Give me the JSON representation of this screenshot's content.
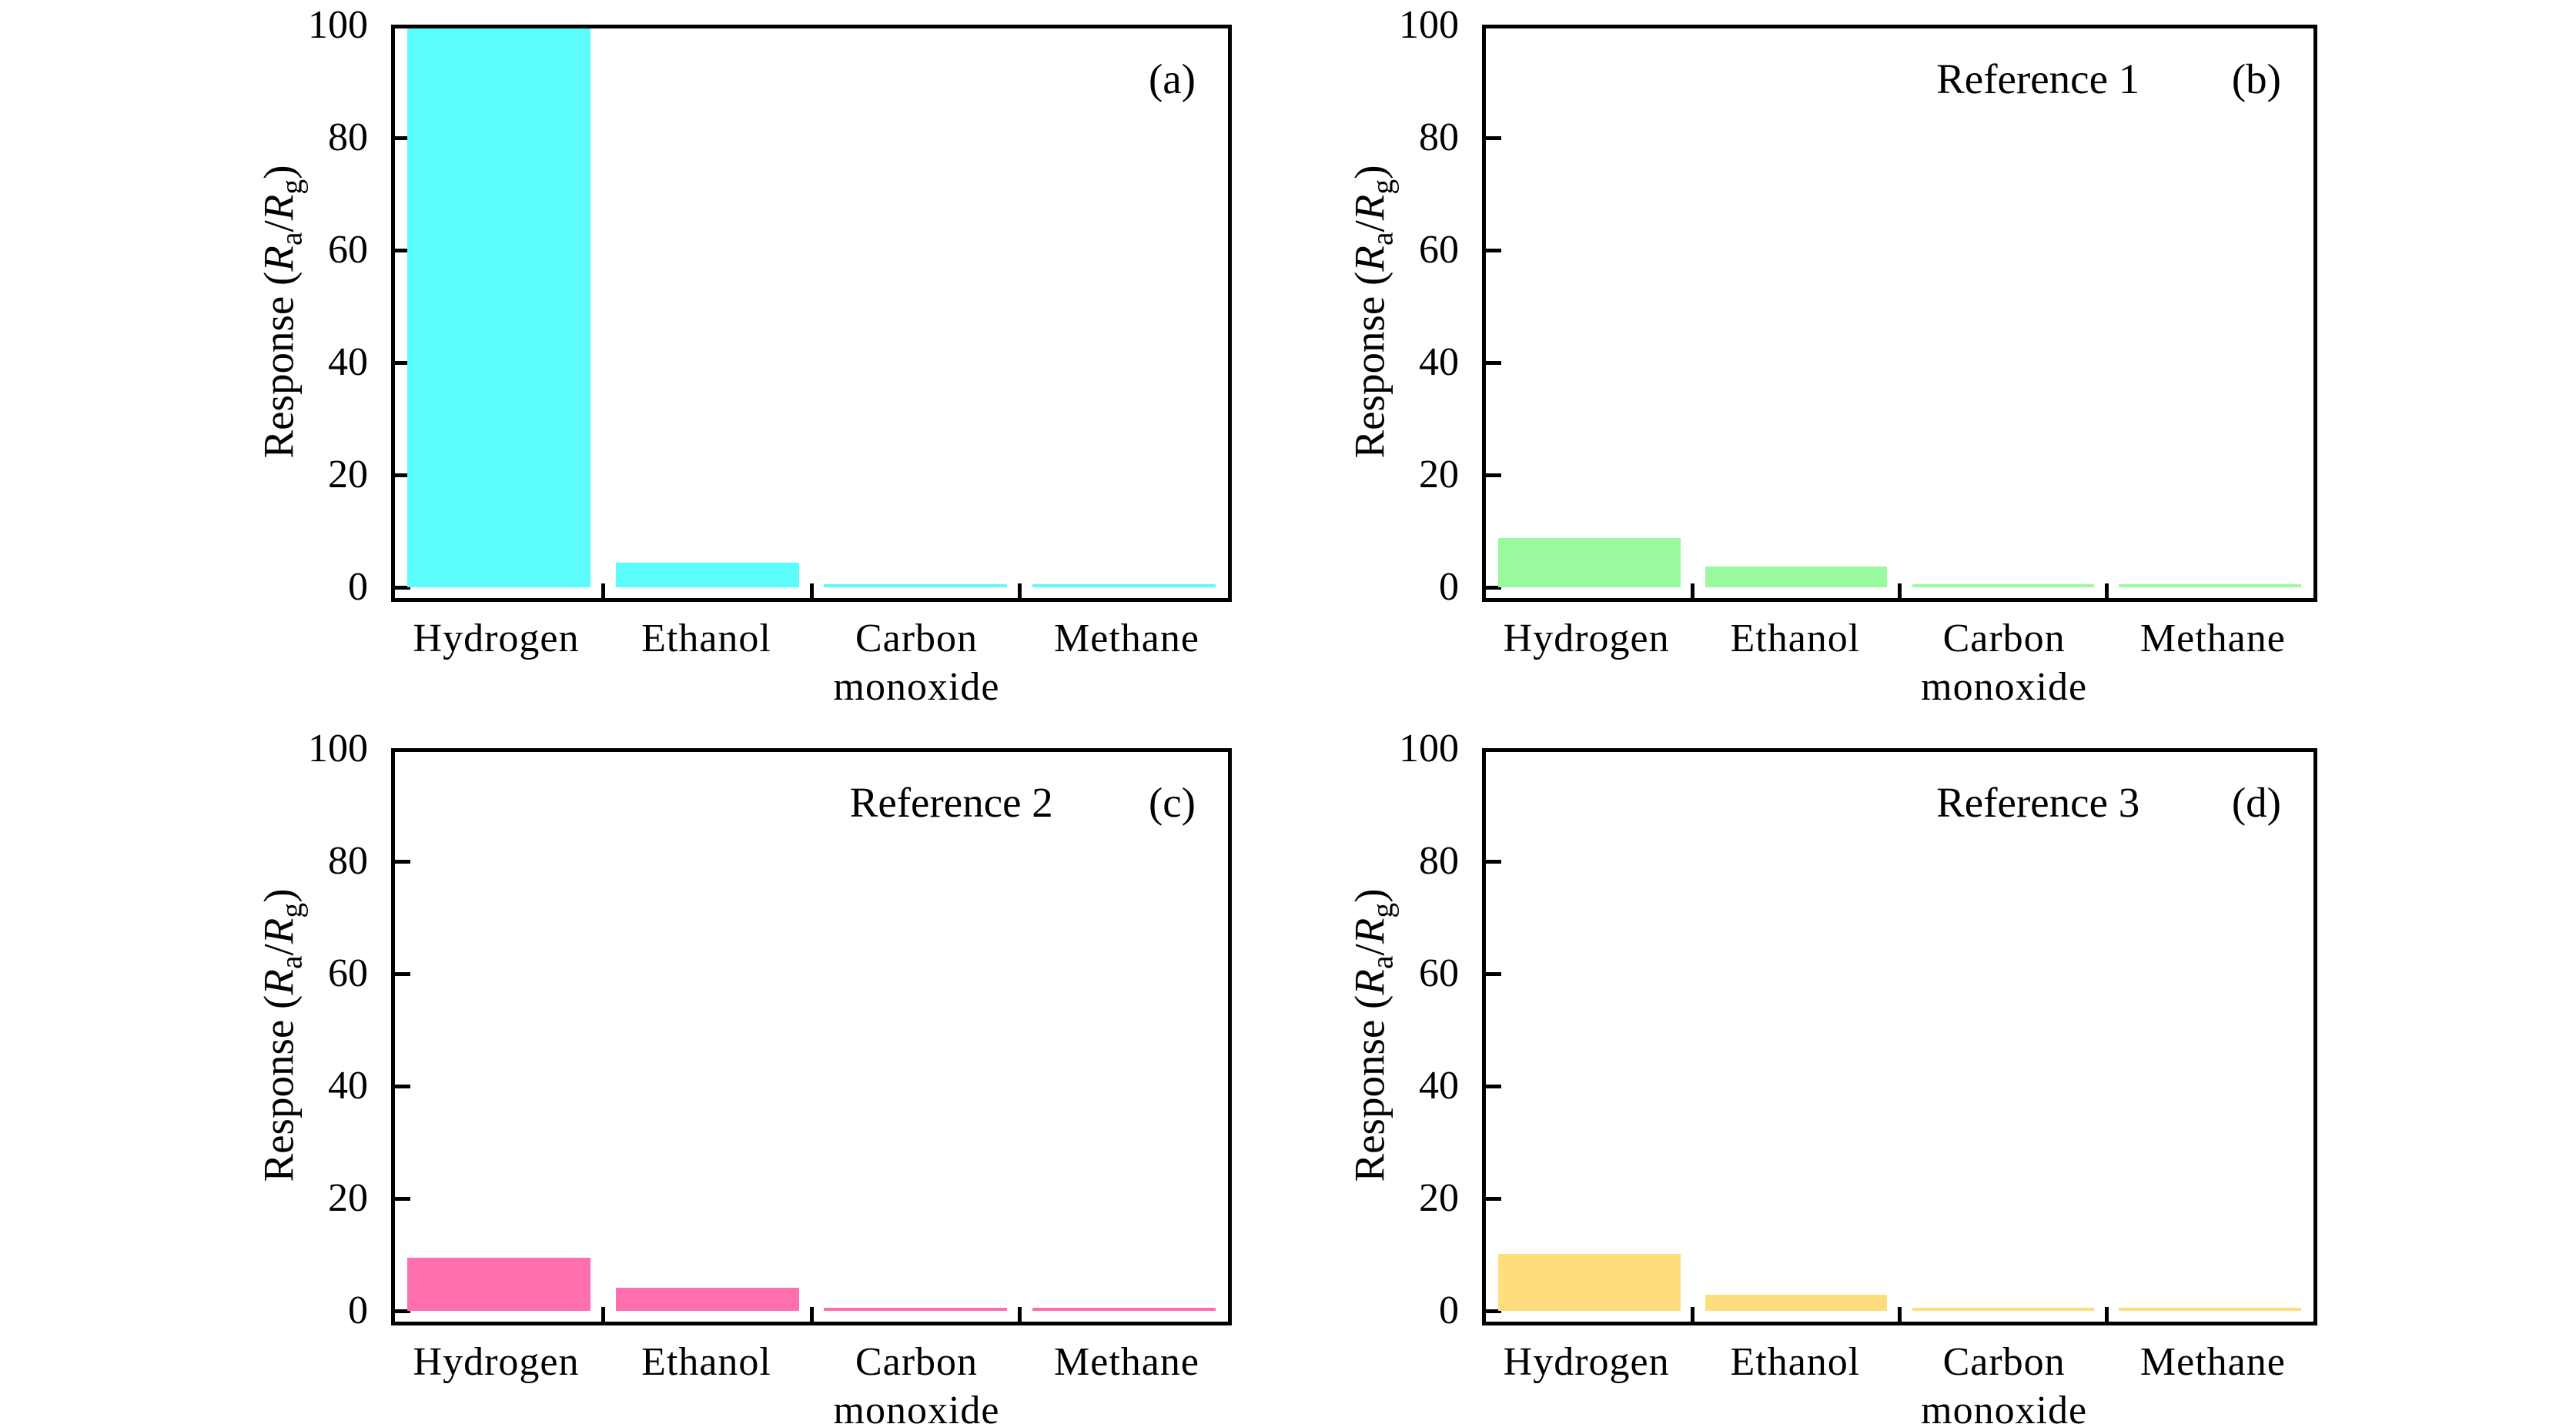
{
  "figure": {
    "background": "#ffffff",
    "axis_color": "#000000",
    "ylabel_text": "Response (Ra/Rg)",
    "ylabel_parts": [
      {
        "t": "Response (",
        "style": "normal"
      },
      {
        "t": "R",
        "style": "italic"
      },
      {
        "t": "a",
        "style": "sub"
      },
      {
        "t": "/",
        "style": "normal"
      },
      {
        "t": "R",
        "style": "italic"
      },
      {
        "t": "g",
        "style": "sub"
      },
      {
        "t": ")",
        "style": "normal"
      }
    ]
  },
  "chart_data": [
    {
      "id": "a",
      "type": "bar",
      "panel_label": "(a)",
      "reference": "",
      "title": "",
      "xlabel": "",
      "ylabel": "Response (Ra/Rg)",
      "categories": [
        "Hydrogen",
        "Ethanol",
        "Carbon\nmonoxide",
        "Methane"
      ],
      "values": [
        100,
        4.4,
        0.5,
        0.5
      ],
      "bar_color": "#5CFCFC",
      "ylim": [
        0,
        100
      ],
      "yticks": [
        0,
        20,
        40,
        60,
        80,
        100
      ],
      "grid": false,
      "legend": "none"
    },
    {
      "id": "b",
      "type": "bar",
      "panel_label": "(b)",
      "reference": "Reference 1",
      "title": "",
      "xlabel": "",
      "ylabel": "Response (Ra/Rg)",
      "categories": [
        "Hydrogen",
        "Ethanol",
        "Carbon\nmonoxide",
        "Methane"
      ],
      "values": [
        8.8,
        3.7,
        0.5,
        0.5
      ],
      "bar_color": "#9AFA9E",
      "ylim": [
        0,
        100
      ],
      "yticks": [
        0,
        20,
        40,
        60,
        80,
        100
      ],
      "grid": false,
      "legend": "none"
    },
    {
      "id": "c",
      "type": "bar",
      "panel_label": "(c)",
      "reference": "Reference 2",
      "title": "",
      "xlabel": "",
      "ylabel": "Response (Ra/Rg)",
      "categories": [
        "Hydrogen",
        "Ethanol",
        "Carbon\nmonoxide",
        "Methane"
      ],
      "values": [
        9.4,
        4.1,
        0.4,
        0.4
      ],
      "bar_color": "#FF6FAE",
      "ylim": [
        0,
        100
      ],
      "yticks": [
        0,
        20,
        40,
        60,
        80,
        100
      ],
      "grid": false,
      "legend": "none"
    },
    {
      "id": "d",
      "type": "bar",
      "panel_label": "(d)",
      "reference": "Reference 3",
      "title": "",
      "xlabel": "",
      "ylabel": "Response (Ra/Rg)",
      "categories": [
        "Hydrogen",
        "Ethanol",
        "Carbon\nmonoxide",
        "Methane"
      ],
      "values": [
        10.2,
        2.9,
        0.4,
        0.4
      ],
      "bar_color": "#FEDD7D",
      "ylim": [
        0,
        100
      ],
      "yticks": [
        0,
        20,
        40,
        60,
        80,
        100
      ],
      "grid": false,
      "legend": "none"
    }
  ]
}
